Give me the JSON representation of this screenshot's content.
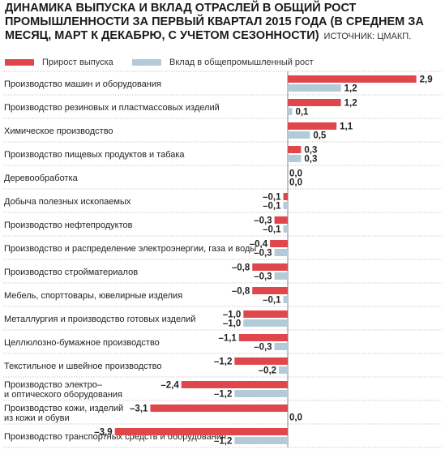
{
  "title_text": "ДИНАМИКА ВЫПУСКА И ВКЛАД ОТРАСЛЕЙ В ОБЩИЙ РОСТ ПРОМЫШЛЕННОСТИ ЗА ПЕРВЫЙ КВАРТАЛ 2015 ГОДА (В СРЕДНЕМ ЗА МЕСЯЦ, МАРТ К ДЕКАБРЮ, С УЧЕТОМ СЕЗОННОСТИ)",
  "source_text": "ИСТОЧНИК: ЦМАКП.",
  "colors": {
    "growth": "#e0474c",
    "contribution": "#b3cbd8",
    "grid": "#9a9a9a"
  },
  "chart_data": {
    "type": "bar",
    "orientation": "horizontal",
    "title": "ДИНАМИКА ВЫПУСКА И ВКЛАД ОТРАСЛЕЙ В ОБЩИЙ РОСТ ПРОМЫШЛЕННОСТИ ЗА ПЕРВЫЙ КВАРТАЛ 2015 ГОДА (В СРЕДНЕМ ЗА МЕСЯЦ, МАРТ К ДЕКАБРЮ, С УЧЕТОМ СЕЗОННОСТИ)",
    "legend_placement": "top",
    "grid": true,
    "xlim": [
      -3.9,
      2.9
    ],
    "categories": [
      "Производство машин и оборудования",
      "Производство резиновых и пластмассовых изделий",
      "Химическое производство",
      "Производство пищевых продуктов и табака",
      "Деревообработка",
      "Добыча полезных ископаемых",
      "Производство нефтепродуктов",
      "Производство и распределение электроэнергии, газа и воды",
      "Производство стройматериалов",
      "Мебель, спорттовары, ювелирные изделия",
      "Металлургия и производство готовых изделий",
      "Целлюлозно-бумажное производство",
      "Текстильное и швейное производство",
      "Производство электро–\nи оптического оборудования",
      "Производство кожи, изделий\nиз кожи и обуви",
      "Производство транспортных средств и оборудования"
    ],
    "series": [
      {
        "name": "Прирост выпуска",
        "values": [
          2.9,
          1.2,
          1.1,
          0.3,
          0.0,
          -0.1,
          -0.3,
          -0.4,
          -0.8,
          -0.8,
          -1.0,
          -1.1,
          -1.2,
          -2.4,
          -3.1,
          -3.9
        ],
        "labels": [
          "2,9",
          "1,2",
          "1,1",
          "0,3",
          "0,0",
          "–0,1",
          "–0,3",
          "–0,4",
          "–0,8",
          "–0,8",
          "–1,0",
          "–1,1",
          "–1,2",
          "–2,4",
          "–3,1",
          "–3,9"
        ]
      },
      {
        "name": "Вклад в общепромышленный рост",
        "values": [
          1.2,
          0.1,
          0.5,
          0.3,
          0.0,
          -0.1,
          -0.1,
          -0.3,
          -0.3,
          -0.1,
          -1.0,
          -0.3,
          -0.2,
          -1.2,
          0.0,
          -1.2
        ],
        "labels": [
          "1,2",
          "0,1",
          "0,5",
          "0,3",
          "0,0",
          "–0,1",
          "–0,1",
          "–0,3",
          "–0,3",
          "–0,1",
          "–1,0",
          "–0,3",
          "–0,2",
          "–1,2",
          "0,0",
          "–1,2"
        ]
      }
    ]
  }
}
